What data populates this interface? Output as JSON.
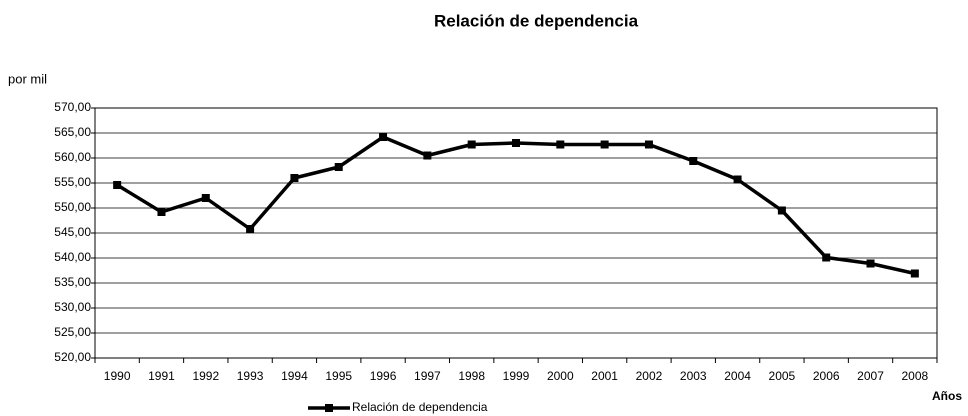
{
  "chart_data": {
    "type": "line",
    "title": "Relación de dependencia",
    "y_label": "por mil",
    "x_label": "Años",
    "categories": [
      "1990",
      "1991",
      "1992",
      "1993",
      "1994",
      "1995",
      "1996",
      "1997",
      "1998",
      "1999",
      "2000",
      "2001",
      "2002",
      "2003",
      "2004",
      "2005",
      "2006",
      "2007",
      "2008"
    ],
    "series": [
      {
        "name": "Relación de dependencia",
        "color": "#000000",
        "values": [
          554.6,
          549.2,
          552.0,
          545.8,
          556.0,
          558.2,
          564.2,
          560.5,
          562.7,
          563.0,
          562.7,
          562.7,
          562.7,
          559.4,
          555.7,
          549.5,
          540.1,
          538.9,
          536.9
        ]
      }
    ],
    "ylim": [
      520,
      570
    ],
    "yticks": [
      {
        "value": 520,
        "label": "520,00"
      },
      {
        "value": 525,
        "label": "525,00"
      },
      {
        "value": 530,
        "label": "530,00"
      },
      {
        "value": 535,
        "label": "535,00"
      },
      {
        "value": 540,
        "label": "540,00"
      },
      {
        "value": 545,
        "label": "545,00"
      },
      {
        "value": 550,
        "label": "550,00"
      },
      {
        "value": 555,
        "label": "555,00"
      },
      {
        "value": 560,
        "label": "560,00"
      },
      {
        "value": 565,
        "label": "565,00"
      },
      {
        "value": 570,
        "label": "570,00"
      }
    ],
    "grid": true,
    "legend": "bottom"
  }
}
